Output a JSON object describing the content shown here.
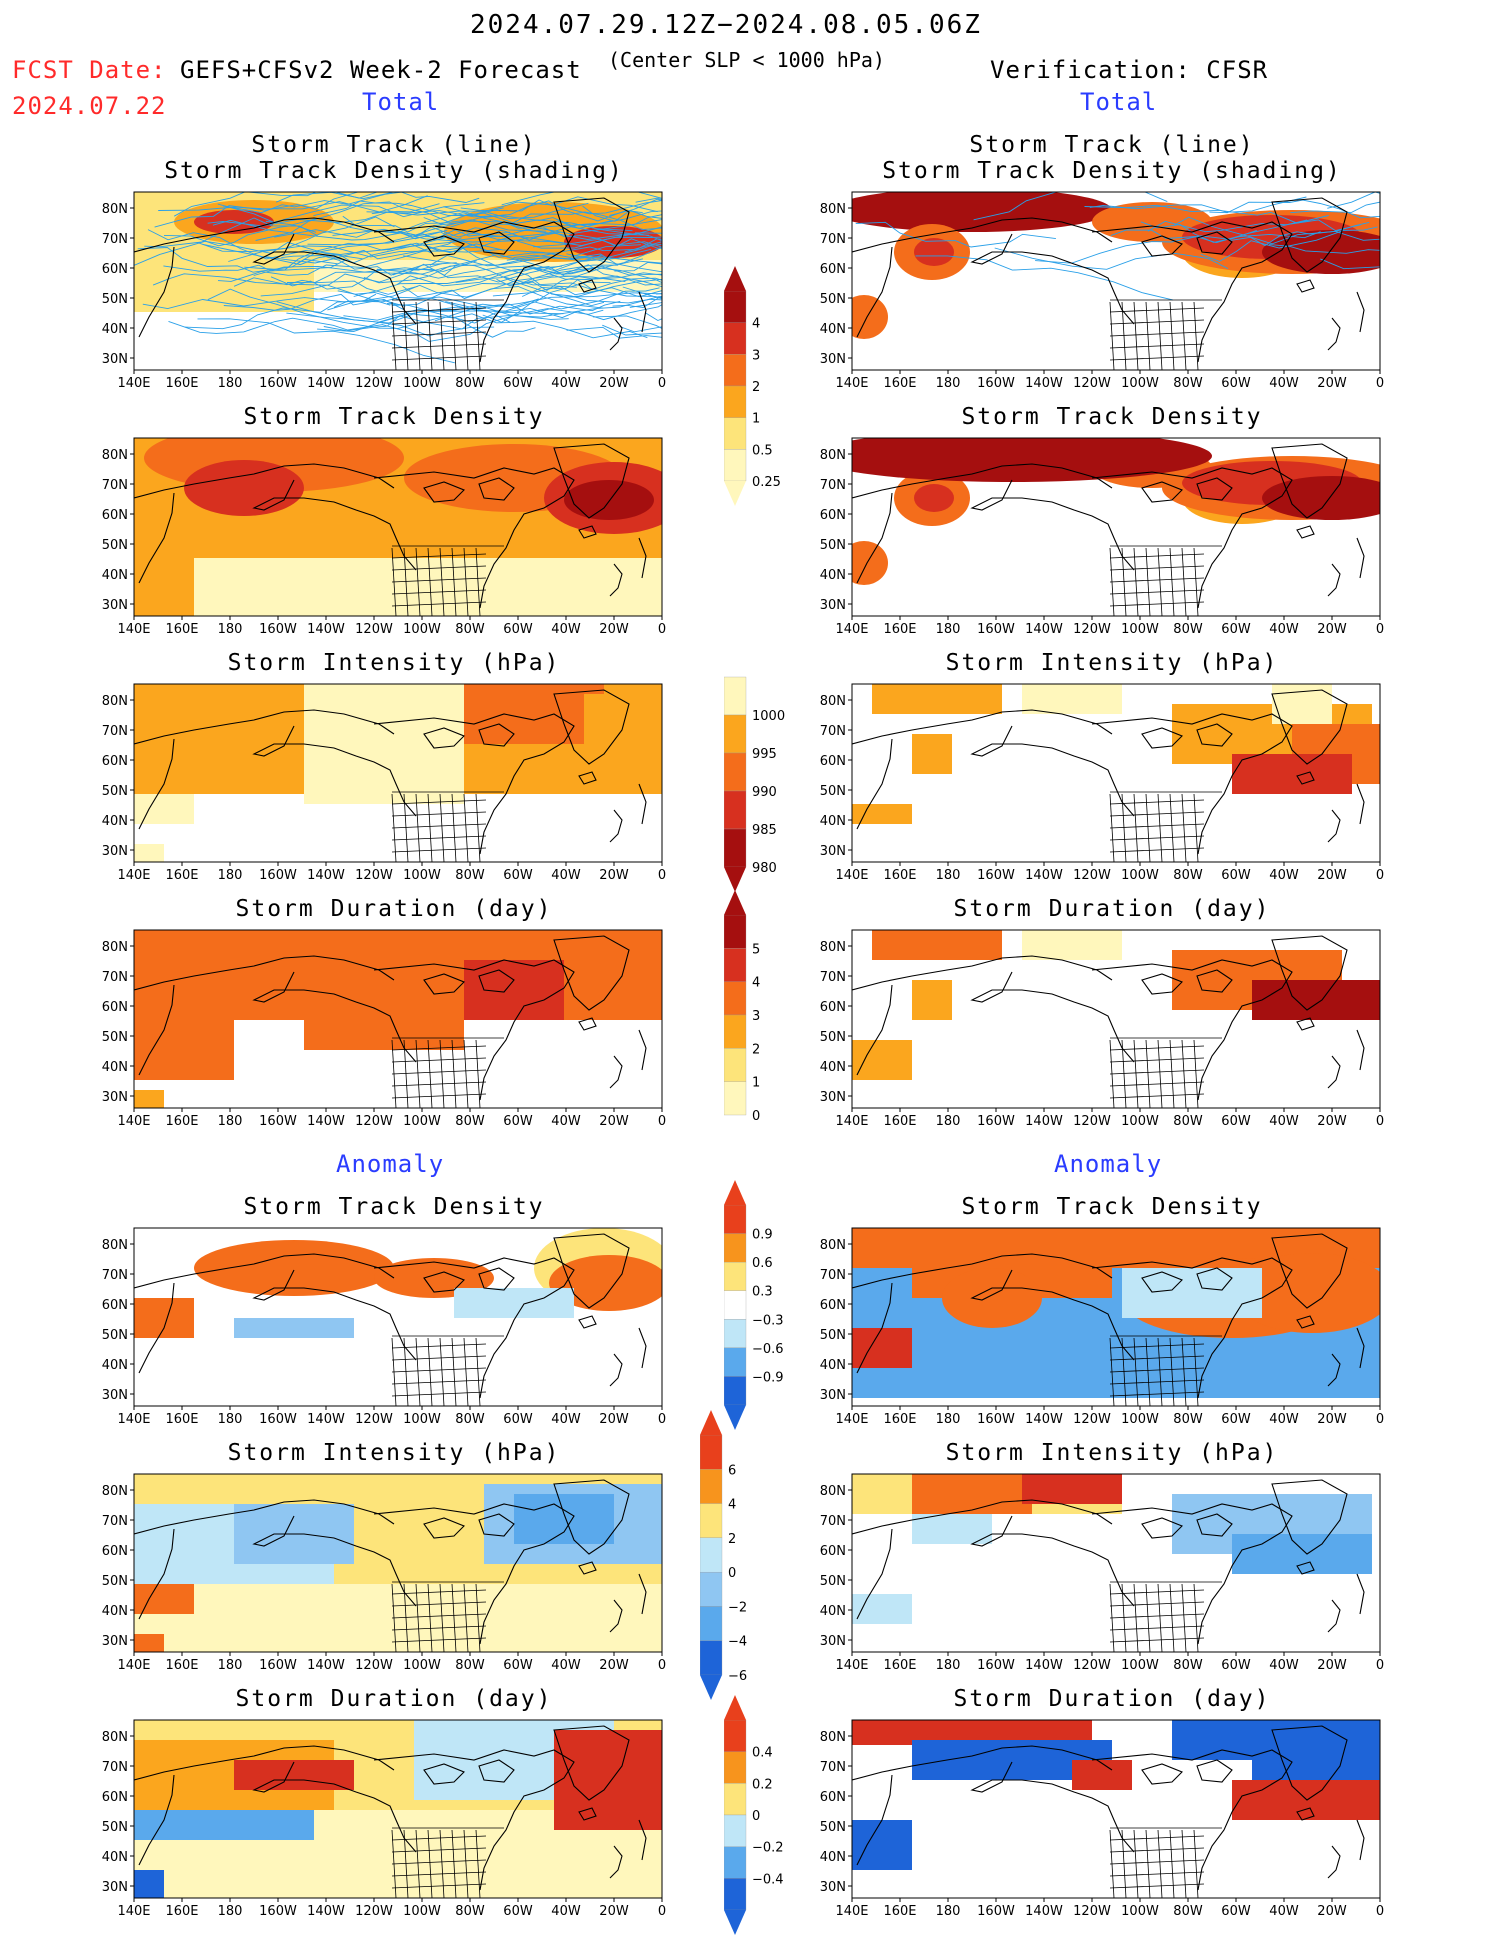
{
  "header": {
    "date_range": "2024.07.29.12Z−2024.08.05.06Z",
    "fcst_label": "FCST Date:",
    "fcst_date": "2024.07.22",
    "forecast_name": "GEFS+CFSv2 Week-2 Forecast",
    "criterion": "(Center SLP < 1000 hPa)",
    "verification": "Verification: CFSR"
  },
  "sections": {
    "total": "Total",
    "anomaly": "Anomaly"
  },
  "panel_titles": {
    "track_line": "Storm Track (line)",
    "track_shading": "Storm Track Density (shading)",
    "density": "Storm Track Density",
    "intensity": "Storm Intensity (hPa)",
    "duration": "Storm Duration (day)"
  },
  "axes": {
    "lon_labels": [
      "140E",
      "160E",
      "180",
      "160W",
      "140W",
      "120W",
      "100W",
      "80W",
      "60W",
      "40W",
      "20W",
      "0"
    ],
    "lat_labels": [
      "80N",
      "70N",
      "60N",
      "50N",
      "40N",
      "30N"
    ]
  },
  "colorbars": {
    "density_total": {
      "labels": [
        "4",
        "3",
        "2",
        "1",
        "0.5",
        "0.25"
      ],
      "colors": [
        "#a50f0f",
        "#d7301f",
        "#f46d1b",
        "#fba61e",
        "#fde47a",
        "#fff7bc"
      ]
    },
    "intensity_total": {
      "labels": [
        "1000",
        "995",
        "990",
        "985",
        "980"
      ],
      "colors": [
        "#fff7bc",
        "#fba61e",
        "#f46d1b",
        "#d7301f",
        "#a50f0f"
      ]
    },
    "duration_total": {
      "labels": [
        "5",
        "4",
        "3",
        "2",
        "1",
        "0"
      ],
      "colors": [
        "#a50f0f",
        "#d7301f",
        "#f46d1b",
        "#fba61e",
        "#fde47a",
        "#fff7bc"
      ]
    },
    "density_anom": {
      "labels": [
        "0.9",
        "0.6",
        "0.3",
        "−0.3",
        "−0.6",
        "−0.9"
      ],
      "colors": [
        "#e8401c",
        "#f7941d",
        "#fde47a",
        "#ffffff",
        "#bfe6f7",
        "#5aa9ec",
        "#1e64d8"
      ]
    },
    "intensity_anom": {
      "labels": [
        "6",
        "4",
        "2",
        "0",
        "−2",
        "−4",
        "−6"
      ],
      "colors": [
        "#e8401c",
        "#f7941d",
        "#fde47a",
        "#bfe6f7",
        "#8fc6f2",
        "#5aa9ec",
        "#1e64d8"
      ]
    },
    "duration_anom": {
      "labels": [
        "0.4",
        "0.2",
        "0",
        "−0.2",
        "−0.4"
      ],
      "colors": [
        "#e8401c",
        "#f7941d",
        "#fde47a",
        "#bfe6f7",
        "#5aa9ec",
        "#1e64d8"
      ]
    }
  }
}
